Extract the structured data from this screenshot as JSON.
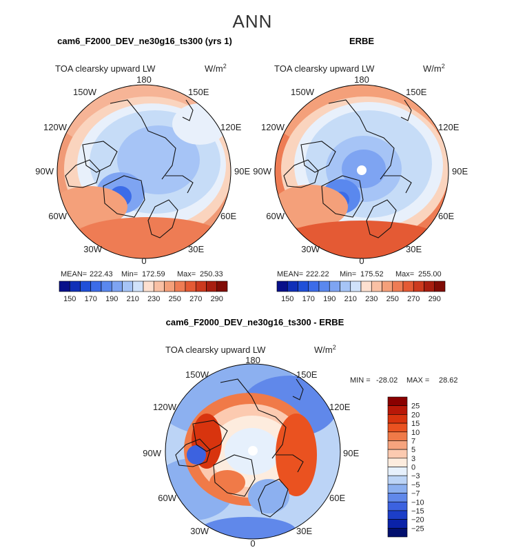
{
  "figure_title": "ANN",
  "panels": [
    {
      "title": "cam6_F2000_DEV_ne30g16_ts300 (yrs 1)",
      "variable": "TOA clearsky upward LW",
      "units": "W/m",
      "units_exp": "2",
      "lon_labels": {
        "n": "180",
        "s": "0",
        "w": "90W",
        "e": "90E",
        "nw1": "150W",
        "nw2": "120W",
        "sw1": "60W",
        "sw2": "30W",
        "ne1": "150E",
        "ne2": "120E",
        "se1": "60E",
        "se2": "30E"
      },
      "stats": {
        "mean_label": "MEAN=",
        "mean": "222.43",
        "min_label": "Min=",
        "min": "172.59",
        "max_label": "Max=",
        "max": "250.33"
      },
      "colorbar_labels": [
        "150",
        "170",
        "190",
        "210",
        "230",
        "250",
        "270",
        "290"
      ]
    },
    {
      "title": "ERBE",
      "variable": "TOA clearsky upward LW",
      "units": "W/m",
      "units_exp": "2",
      "lon_labels": {
        "n": "180",
        "s": "0",
        "w": "90W",
        "e": "90E",
        "nw1": "150W",
        "nw2": "120W",
        "sw1": "60W",
        "sw2": "30W",
        "ne1": "150E",
        "ne2": "120E",
        "se1": "60E",
        "se2": "30E"
      },
      "stats": {
        "mean_label": "MEAN=",
        "mean": "222.22",
        "min_label": "Min=",
        "min": "175.52",
        "max_label": "Max=",
        "max": "255.00"
      },
      "colorbar_labels": [
        "150",
        "170",
        "190",
        "210",
        "230",
        "250",
        "270",
        "290"
      ]
    },
    {
      "title": "cam6_F2000_DEV_ne30g16_ts300 - ERBE",
      "variable": "TOA clearsky upward LW",
      "units": "W/m",
      "units_exp": "2",
      "lon_labels": {
        "n": "180",
        "s": "0",
        "w": "90W",
        "e": "90E",
        "nw1": "150W",
        "nw2": "120W",
        "sw1": "60W",
        "sw2": "30W",
        "ne1": "150E",
        "ne2": "120E",
        "se1": "60E",
        "se2": "30E"
      },
      "stats": {
        "min_label": "MIN =",
        "min": "-28.02",
        "max_label": "MAX =",
        "max": "28.62"
      },
      "colorbar_labels": [
        "25",
        "20",
        "15",
        "10",
        "7",
        "5",
        "3",
        "0",
        "−3",
        "−5",
        "−7",
        "−10",
        "−15",
        "−20",
        "−25"
      ]
    }
  ],
  "colors": {
    "abs_scale": [
      "#08108a",
      "#1030b8",
      "#2050d8",
      "#3c6ce8",
      "#5a88ee",
      "#7ea4f2",
      "#a6c4f6",
      "#d0e2fa",
      "#fde0d0",
      "#f9c0a4",
      "#f4a07a",
      "#ee7c54",
      "#e45a34",
      "#cc3a1e",
      "#a81e10",
      "#800c06"
    ],
    "diff_scale": [
      "#8a0000",
      "#b81808",
      "#d8340e",
      "#ea5220",
      "#f07a48",
      "#f6a47e",
      "#fccab0",
      "#fdecde",
      "#e6f0fc",
      "#bcd4f6",
      "#8cb0f0",
      "#6088ea",
      "#3c62e0",
      "#1c3ec8",
      "#0a22a8",
      "#02106e"
    ],
    "land_outline": "#111111"
  }
}
